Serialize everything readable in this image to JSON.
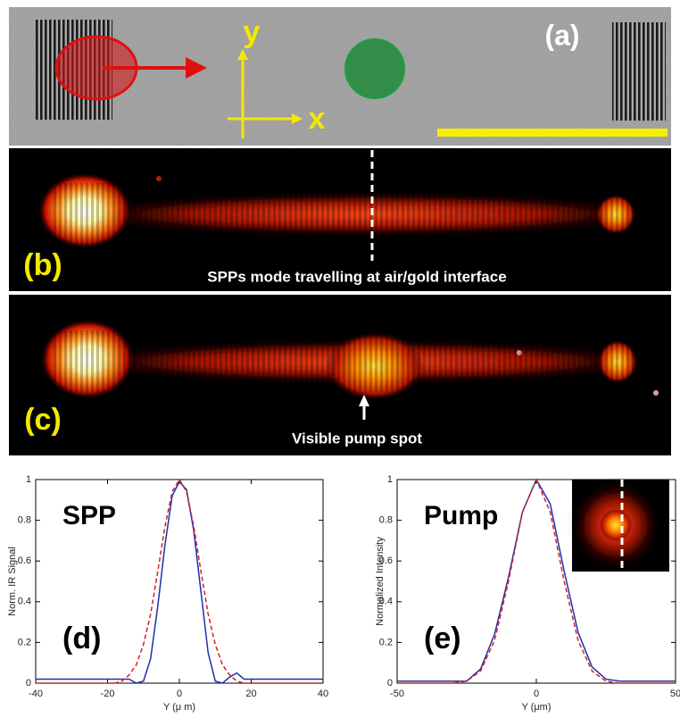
{
  "panels": {
    "a": {
      "label": "(a)",
      "axis_y": "y",
      "axis_x": "x"
    },
    "b": {
      "label": "(b)",
      "caption": "SPPs mode travelling at air/gold interface"
    },
    "c": {
      "label": "(c)",
      "caption": "Visible pump spot"
    }
  },
  "chart_data": [
    {
      "type": "line",
      "title": "SPP",
      "label": "(d)",
      "xlabel": "Y (μ m)",
      "ylabel": "Norm. IR Signal",
      "x": [
        -40,
        -38,
        -36,
        -34,
        -32,
        -30,
        -28,
        -26,
        -24,
        -22,
        -20,
        -18,
        -16,
        -14,
        -12,
        -10,
        -8,
        -6,
        -4,
        -2,
        0,
        2,
        4,
        6,
        8,
        10,
        12,
        14,
        16,
        18,
        20,
        22,
        24,
        26,
        28,
        30,
        32,
        34,
        36,
        38,
        40
      ],
      "series": [
        {
          "color": "#1f2fb0",
          "linestyle": "solid",
          "values": [
            0.02,
            0.02,
            0.02,
            0.02,
            0.02,
            0.02,
            0.02,
            0.02,
            0.02,
            0.02,
            0.02,
            0.02,
            0.02,
            0.02,
            0.0,
            0.01,
            0.12,
            0.38,
            0.68,
            0.92,
            0.99,
            0.95,
            0.75,
            0.45,
            0.15,
            0.01,
            0.0,
            0.03,
            0.05,
            0.02,
            0.02,
            0.02,
            0.02,
            0.02,
            0.02,
            0.02,
            0.02,
            0.02,
            0.02,
            0.02,
            0.02
          ]
        },
        {
          "color": "#d42020",
          "linestyle": "dashed",
          "values": [
            0,
            0,
            0,
            0,
            0,
            0,
            0,
            0,
            0,
            0,
            0,
            0,
            0.01,
            0.04,
            0.09,
            0.19,
            0.34,
            0.55,
            0.77,
            0.94,
            1,
            0.94,
            0.77,
            0.55,
            0.34,
            0.19,
            0.09,
            0.04,
            0.01,
            0,
            0,
            0,
            0,
            0,
            0,
            0,
            0,
            0,
            0,
            0,
            0
          ]
        }
      ],
      "xlim": [
        -40,
        40
      ],
      "xticks": [
        -40,
        -20,
        0,
        20,
        40
      ],
      "ylim": [
        0,
        1
      ],
      "yticks": [
        0,
        0.2,
        0.4,
        0.6,
        0.8,
        1
      ]
    },
    {
      "type": "line",
      "title": "Pump",
      "label": "(e)",
      "xlabel": "Y (μm)",
      "ylabel": "Normalized Intensity",
      "x": [
        -50,
        -45,
        -40,
        -35,
        -30,
        -25,
        -20,
        -15,
        -10,
        -5,
        0,
        5,
        10,
        15,
        20,
        25,
        30,
        35,
        40,
        45,
        50
      ],
      "series": [
        {
          "color": "#1f2fb0",
          "linestyle": "solid",
          "values": [
            0.01,
            0.01,
            0.01,
            0.01,
            0.01,
            0.01,
            0.07,
            0.24,
            0.52,
            0.84,
            1.0,
            0.88,
            0.55,
            0.25,
            0.08,
            0.02,
            0.01,
            0.01,
            0.01,
            0.01,
            0.01
          ]
        },
        {
          "color": "#d42020",
          "linestyle": "dashed",
          "values": [
            0,
            0,
            0,
            0,
            0,
            0.01,
            0.06,
            0.21,
            0.5,
            0.84,
            1,
            0.84,
            0.5,
            0.21,
            0.06,
            0.01,
            0,
            0,
            0,
            0,
            0
          ]
        }
      ],
      "xlim": [
        -50,
        50
      ],
      "xticks": [
        -50,
        0,
        50
      ],
      "ylim": [
        0,
        1
      ],
      "yticks": [
        0,
        0.2,
        0.4,
        0.6,
        0.8,
        1
      ]
    }
  ]
}
